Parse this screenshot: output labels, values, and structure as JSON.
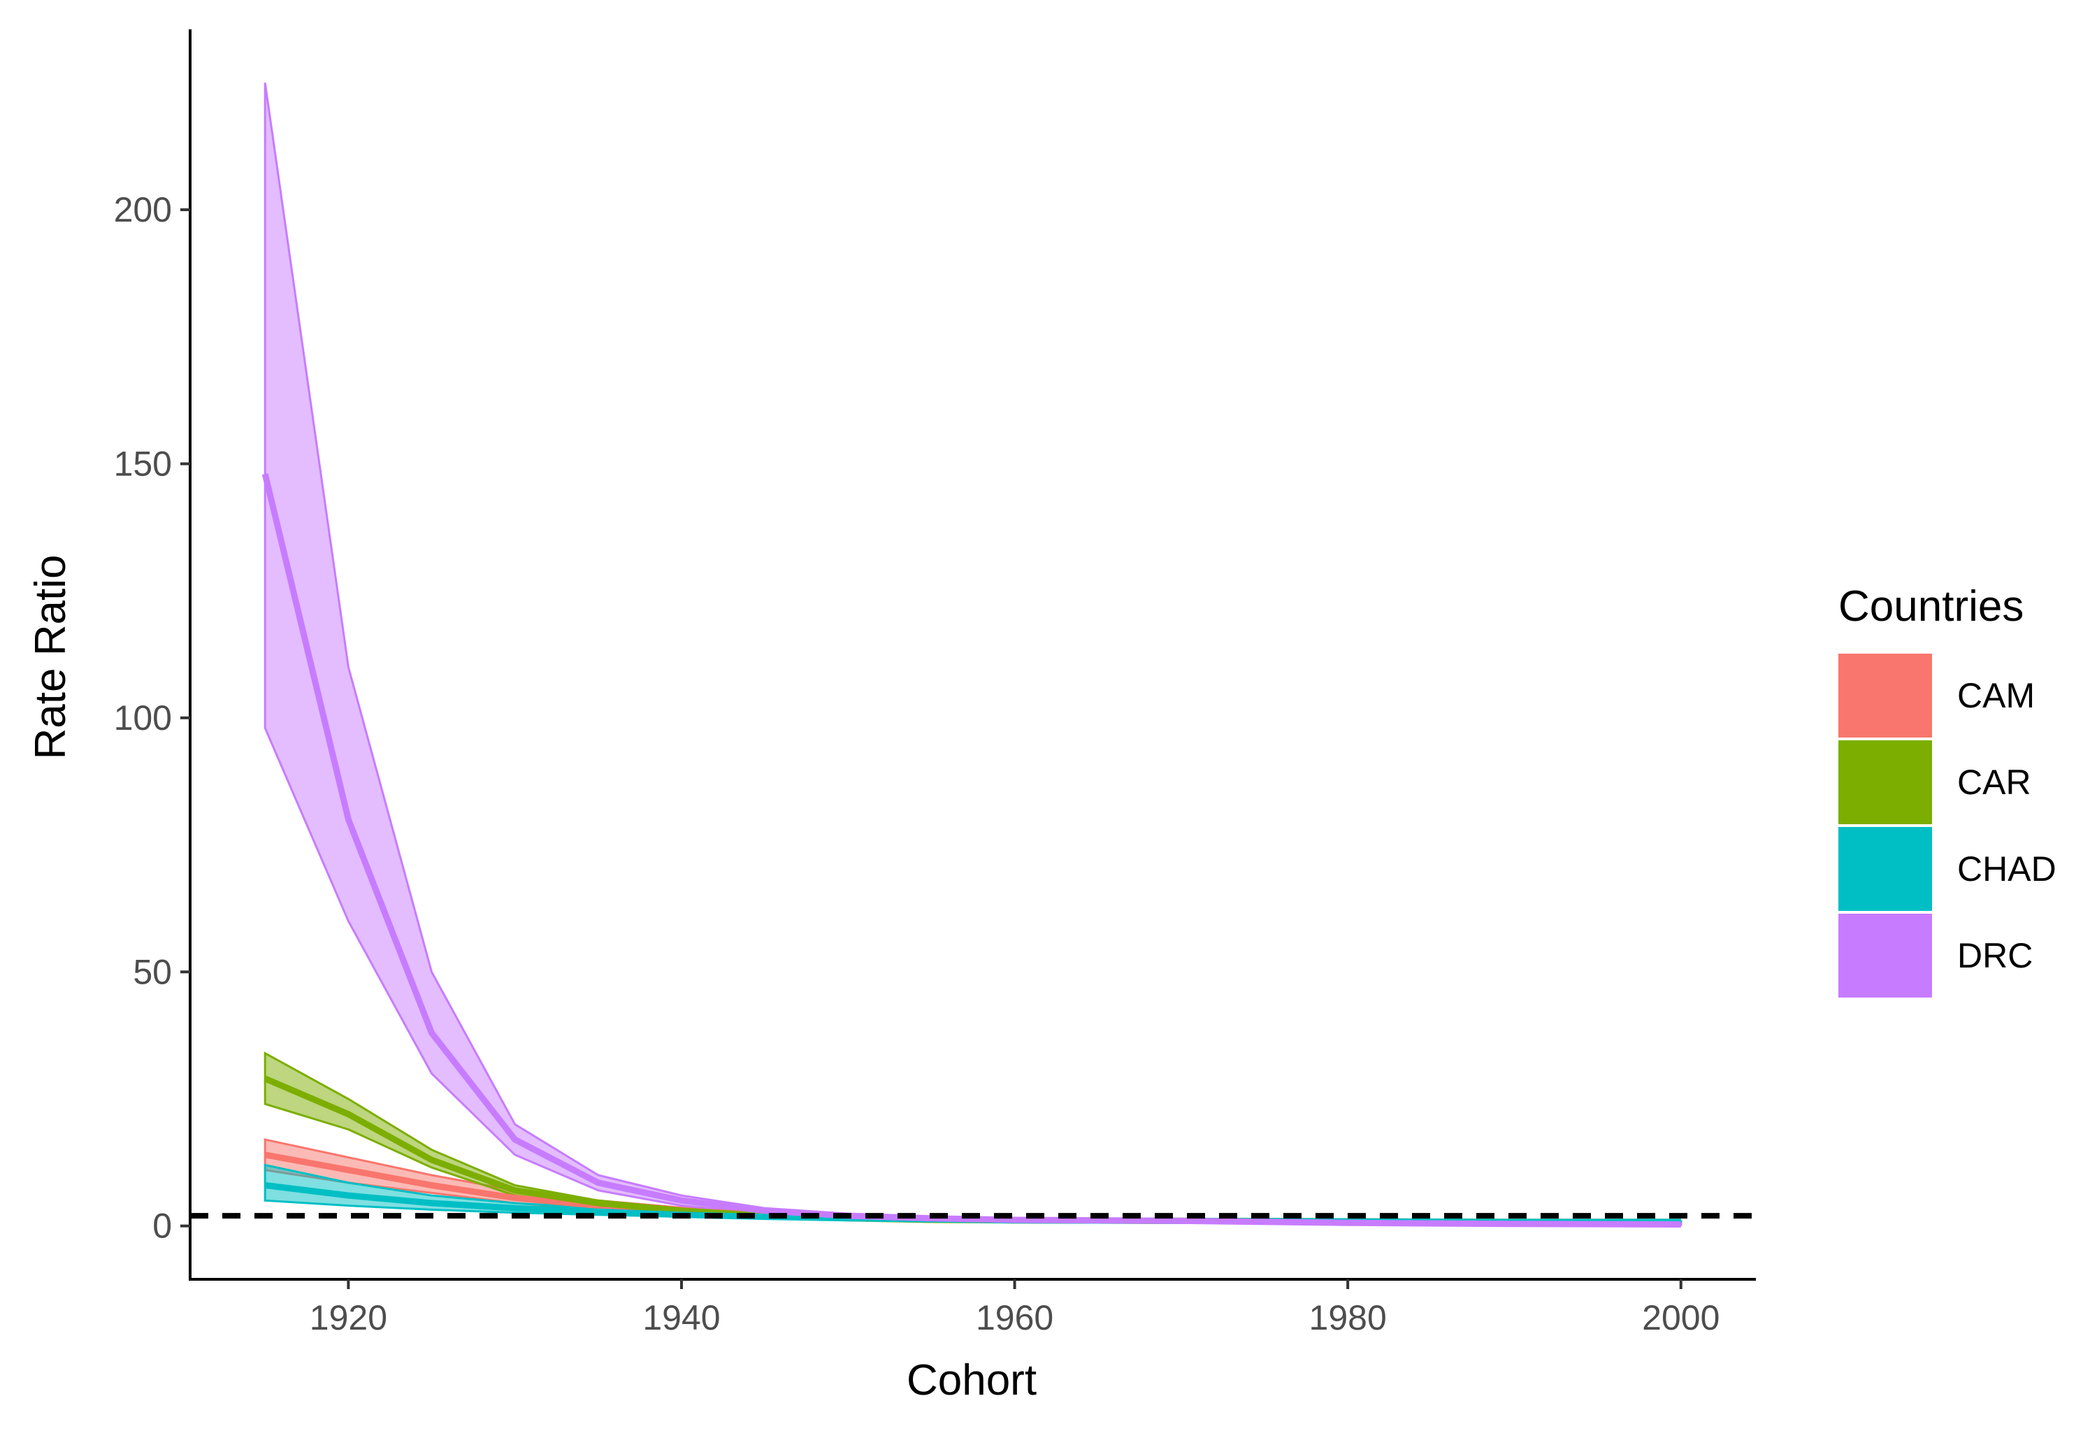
{
  "chart_data": {
    "type": "area",
    "xlabel": "Cohort",
    "ylabel": "Rate Ratio",
    "xlim": [
      1910.5,
      2004.5
    ],
    "ylim": [
      -10.5,
      235.5
    ],
    "x_ticks": [
      1920,
      1940,
      1960,
      1980,
      2000
    ],
    "y_ticks": [
      0,
      50,
      100,
      150,
      200
    ],
    "grid": false,
    "reference_line": {
      "y": 2,
      "style": "dashed",
      "color": "#000000"
    },
    "legend": {
      "title": "Countries",
      "position": "right"
    },
    "series": [
      {
        "name": "CAM",
        "color": "#F8766D",
        "x": [
          1915,
          1920,
          1925,
          1930,
          1935,
          1940,
          1945,
          1950,
          1955,
          1960,
          1970,
          1980,
          1990,
          2000
        ],
        "mean": [
          14,
          11,
          8,
          5.5,
          4,
          3,
          2.2,
          1.6,
          1.3,
          1.1,
          1,
          0.9,
          0.8,
          0.8
        ],
        "lower": [
          11,
          8.5,
          6.5,
          4.5,
          3.3,
          2.5,
          1.9,
          1.4,
          1.1,
          1,
          0.9,
          0.8,
          0.7,
          0.7
        ],
        "upper": [
          17,
          13.5,
          10,
          7,
          5,
          3.6,
          2.6,
          1.9,
          1.5,
          1.3,
          1.1,
          1,
          0.9,
          0.9
        ]
      },
      {
        "name": "CAR",
        "color": "#7CAE00",
        "x": [
          1915,
          1920,
          1925,
          1930,
          1935,
          1940,
          1945,
          1950,
          1955,
          1960,
          1970,
          1980,
          1990,
          2000
        ],
        "mean": [
          29,
          22,
          13,
          7,
          4.5,
          3,
          2,
          1.5,
          1.2,
          1.1,
          1,
          0.9,
          0.8,
          0.8
        ],
        "lower": [
          24,
          19,
          11.5,
          6,
          4,
          2.6,
          1.8,
          1.3,
          1.1,
          1,
          0.9,
          0.8,
          0.7,
          0.7
        ],
        "upper": [
          34,
          25,
          15,
          8,
          5,
          3.4,
          2.3,
          1.7,
          1.4,
          1.2,
          1.1,
          1,
          0.9,
          0.9
        ]
      },
      {
        "name": "CHAD",
        "color": "#00BFC4",
        "x": [
          1915,
          1920,
          1925,
          1930,
          1935,
          1940,
          1945,
          1950,
          1955,
          1960,
          1970,
          1980,
          1990,
          2000
        ],
        "mean": [
          8,
          6,
          4.5,
          3.5,
          2.8,
          2.2,
          1.8,
          1.5,
          1.3,
          1.1,
          1,
          0.9,
          0.8,
          0.8
        ],
        "lower": [
          5,
          4,
          3.2,
          2.6,
          2.2,
          1.8,
          1.5,
          1.3,
          1.1,
          1,
          0.9,
          0.8,
          0.7,
          0.7
        ],
        "upper": [
          12,
          8.5,
          6,
          4.5,
          3.5,
          2.7,
          2.1,
          1.7,
          1.5,
          1.3,
          1.1,
          1,
          0.9,
          0.9
        ]
      },
      {
        "name": "DRC",
        "color": "#C77CFF",
        "x": [
          1915,
          1920,
          1925,
          1930,
          1935,
          1940,
          1945,
          1950,
          1955,
          1960,
          1970,
          1980,
          1990,
          2000
        ],
        "mean": [
          148,
          80,
          38,
          17,
          8.5,
          5,
          3,
          2,
          1.5,
          1.2,
          1,
          0.6,
          0.4,
          0.3
        ],
        "lower": [
          98,
          60,
          30,
          14,
          7,
          4,
          2.5,
          1.7,
          1.3,
          1,
          0.8,
          0.4,
          0.3,
          0.2
        ],
        "upper": [
          225,
          110,
          50,
          20,
          10,
          6,
          3.5,
          2.4,
          1.8,
          1.4,
          1.2,
          0.8,
          0.6,
          0.4
        ]
      }
    ]
  }
}
